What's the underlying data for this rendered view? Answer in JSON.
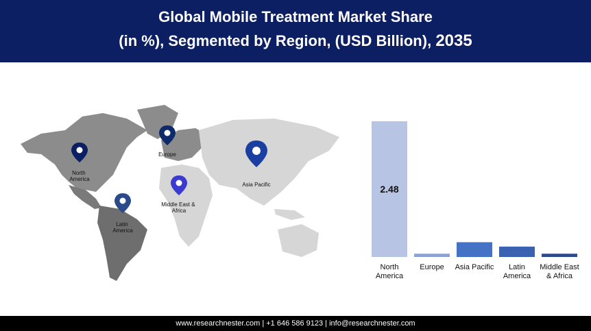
{
  "header": {
    "title_line1": "Global Mobile Treatment Market Share",
    "title_line2": "(in %), Segmented by Region, (USD Billion),",
    "year": "2035"
  },
  "map": {
    "pins": [
      {
        "label_lines": [
          "North",
          "America"
        ],
        "color": "#0d1f63"
      },
      {
        "label_lines": [
          "Europe"
        ],
        "color": "#0d2a6b"
      },
      {
        "label_lines": [
          "Asia Pacific"
        ],
        "color": "#1a3fa0"
      },
      {
        "label_lines": [
          "Middle East &",
          "Africa"
        ],
        "color": "#3b3bd0"
      },
      {
        "label_lines": [
          "Latin",
          "America"
        ],
        "color": "#2a4a8a"
      }
    ]
  },
  "chart_data": {
    "type": "bar",
    "categories": [
      "North America",
      "Europe",
      "Asia Pacific",
      "Latin America",
      "Middle East & Africa"
    ],
    "category_label_lines": [
      [
        "North",
        "America"
      ],
      [
        "Europe"
      ],
      [
        "Asia Pacific"
      ],
      [
        "Latin",
        "America"
      ],
      [
        "Middle East",
        "& Africa"
      ]
    ],
    "values": [
      2.48,
      0.06,
      0.27,
      0.19,
      0.06
    ],
    "data_labels": [
      "2.48",
      "",
      "",
      "",
      ""
    ],
    "colors": [
      "#b8c4e4",
      "#8ea2d2",
      "#4472c4",
      "#3a62b0",
      "#2d4a8a"
    ],
    "ylim": [
      0,
      2.48
    ],
    "grid": false,
    "legend": "none"
  },
  "footer": {
    "text": "www.researchnester.com  | +1 646 586 9123 | info@researchnester.com"
  }
}
